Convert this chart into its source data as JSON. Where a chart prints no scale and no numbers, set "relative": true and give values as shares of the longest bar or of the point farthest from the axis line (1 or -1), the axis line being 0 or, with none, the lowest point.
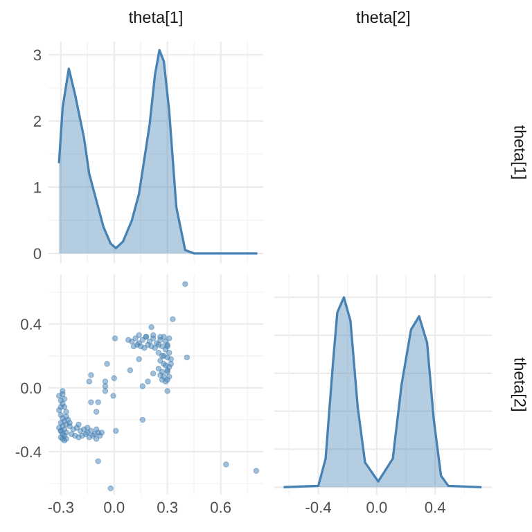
{
  "chart_data": [
    {
      "type": "area",
      "title": "theta[1]",
      "y2label": "theta[1]",
      "color": "#4682b4",
      "x": [
        -0.31,
        -0.29,
        -0.255,
        -0.22,
        -0.17,
        -0.14,
        -0.1,
        -0.06,
        -0.02,
        0.01,
        0.05,
        0.1,
        0.14,
        0.2,
        0.23,
        0.255,
        0.28,
        0.31,
        0.35,
        0.4,
        0.45,
        0.6,
        0.8
      ],
      "values": [
        1.38,
        2.2,
        2.79,
        2.4,
        1.75,
        1.2,
        0.8,
        0.4,
        0.15,
        0.08,
        0.18,
        0.5,
        0.9,
        1.95,
        2.7,
        3.07,
        2.9,
        2.15,
        0.7,
        0.05,
        0.0,
        0.0,
        0.0
      ],
      "xlim": [
        -0.37,
        0.84
      ],
      "ylim": [
        -0.15,
        3.2
      ],
      "xticks": [
        {
          "value": -0.3,
          "label": null
        },
        {
          "value": 0.0,
          "label": null
        },
        {
          "value": 0.3,
          "label": null
        },
        {
          "value": 0.6,
          "label": null
        }
      ],
      "yticks": [
        0,
        1,
        2,
        3
      ],
      "tick_labels": "y",
      "grid": true
    },
    {
      "type": "scatter",
      "color": "#4682b4",
      "x": [
        -0.31,
        -0.3,
        -0.29,
        -0.28,
        -0.27,
        -0.31,
        -0.3,
        -0.29,
        -0.28,
        -0.27,
        -0.3,
        -0.29,
        -0.28,
        -0.27,
        -0.26,
        -0.31,
        -0.3,
        -0.29,
        -0.28,
        -0.27,
        -0.3,
        -0.29,
        -0.28,
        -0.3,
        -0.29,
        -0.28,
        -0.25,
        -0.23,
        -0.21,
        -0.19,
        -0.17,
        -0.15,
        -0.13,
        -0.11,
        -0.09,
        -0.07,
        -0.24,
        -0.22,
        -0.2,
        -0.18,
        -0.16,
        -0.14,
        -0.12,
        -0.1,
        -0.08,
        -0.25,
        -0.2,
        -0.15,
        -0.1,
        -0.29,
        -0.3,
        -0.27,
        0.08,
        0.1,
        0.12,
        0.14,
        0.16,
        0.18,
        0.2,
        0.22,
        0.24,
        0.26,
        0.28,
        0.3,
        0.11,
        0.13,
        0.15,
        0.17,
        0.19,
        0.21,
        0.23,
        0.25,
        0.27,
        0.29,
        0.31,
        0.14,
        0.18,
        0.22,
        0.26,
        0.25,
        0.27,
        0.29,
        0.31,
        0.26,
        0.28,
        0.3,
        0.32,
        0.25,
        0.27,
        0.29,
        0.31,
        0.26,
        0.28,
        0.3,
        0.27,
        0.29,
        0.31,
        0.28,
        0.3,
        0.3,
        0.32,
        0.4,
        0.33,
        0.21,
        0.41,
        0.005,
        0.14,
        0.09,
        -0.04,
        -0.13,
        -0.14,
        0.0,
        -0.05,
        -0.05,
        -0.005,
        -0.05,
        -0.13,
        -0.09,
        -0.1,
        0.16,
        0.01,
        -0.09,
        -0.02,
        0.63,
        0.8,
        0.16,
        0.19,
        0.3,
        0.3,
        0.22
      ],
      "values": [
        -0.05,
        -0.08,
        -0.1,
        -0.12,
        -0.15,
        -0.14,
        -0.17,
        -0.19,
        -0.21,
        -0.18,
        -0.22,
        -0.24,
        -0.26,
        -0.23,
        -0.2,
        -0.25,
        -0.27,
        -0.29,
        -0.3,
        -0.28,
        -0.31,
        -0.32,
        -0.33,
        -0.12,
        -0.04,
        -0.07,
        -0.24,
        -0.26,
        -0.25,
        -0.27,
        -0.26,
        -0.28,
        -0.27,
        -0.29,
        -0.28,
        -0.28,
        -0.29,
        -0.3,
        -0.31,
        -0.3,
        -0.29,
        -0.31,
        -0.3,
        -0.32,
        -0.3,
        -0.22,
        -0.23,
        -0.25,
        -0.26,
        -0.02,
        -0.27,
        -0.32,
        0.3,
        0.29,
        0.31,
        0.28,
        0.3,
        0.32,
        0.29,
        0.31,
        0.28,
        0.3,
        0.32,
        0.27,
        0.26,
        0.27,
        0.26,
        0.25,
        0.27,
        0.26,
        0.25,
        0.27,
        0.26,
        0.29,
        0.31,
        0.33,
        0.32,
        0.33,
        0.32,
        0.22,
        0.2,
        0.24,
        0.22,
        0.17,
        0.15,
        0.19,
        0.18,
        0.12,
        0.1,
        0.14,
        0.13,
        0.08,
        0.07,
        0.1,
        0.05,
        0.04,
        0.07,
        0.2,
        0.26,
        0.11,
        0.15,
        0.65,
        0.43,
        0.38,
        0.19,
        0.31,
        0.18,
        0.11,
        0.15,
        0.08,
        0.04,
        0.06,
        0.04,
        0.01,
        -0.05,
        -0.02,
        -0.09,
        -0.09,
        -0.15,
        -0.2,
        -0.27,
        -0.46,
        -0.63,
        -0.48,
        -0.52,
        0.01,
        0.04,
        0.05,
        -0.02,
        0.09
      ],
      "xlim": [
        -0.37,
        0.84
      ],
      "ylim": [
        -0.67,
        0.71
      ],
      "xticks": [
        {
          "value": -0.3,
          "label": "-0.3"
        },
        {
          "value": 0.0,
          "label": "0.0"
        },
        {
          "value": 0.3,
          "label": "0.3"
        },
        {
          "value": 0.6,
          "label": "0.6"
        }
      ],
      "yticks": [
        {
          "value": -0.4,
          "label": "-0.4"
        },
        {
          "value": 0.0,
          "label": "0.0"
        },
        {
          "value": 0.4,
          "label": "0.4"
        }
      ],
      "grid": true
    },
    {
      "type": "area",
      "title": "theta[2]",
      "y2label": "theta[2]",
      "color": "#4682b4",
      "relative": true,
      "x": [
        -0.63,
        -0.4,
        -0.35,
        -0.3,
        -0.27,
        -0.225,
        -0.18,
        -0.13,
        -0.08,
        0.01,
        0.11,
        0.17,
        0.235,
        0.29,
        0.345,
        0.39,
        0.44,
        0.49,
        0.71
      ],
      "values": [
        0,
        0.007,
        0.15,
        0.65,
        0.92,
        1.0,
        0.876,
        0.42,
        0.13,
        0.03,
        0.15,
        0.54,
        0.83,
        0.9,
        0.76,
        0.36,
        0.06,
        0.007,
        0
      ],
      "xlim": [
        -0.7,
        0.79
      ],
      "xticks": [
        {
          "value": -0.4,
          "label": "-0.4"
        },
        {
          "value": 0.0,
          "label": "0.0"
        },
        {
          "value": 0.4,
          "label": "0.4"
        }
      ],
      "tick_labels": "x",
      "grid": true
    }
  ]
}
